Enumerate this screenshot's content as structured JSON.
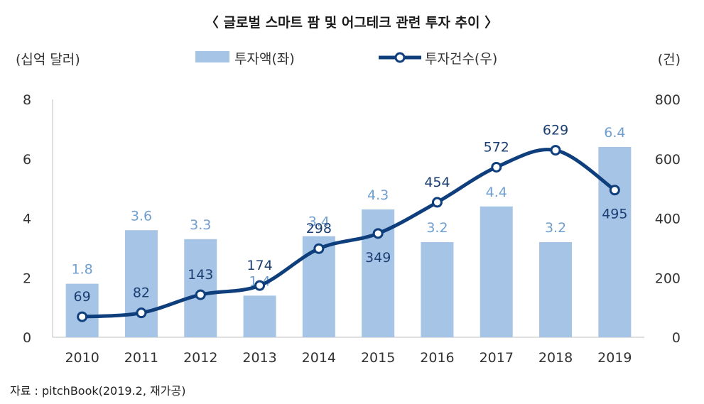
{
  "chart_data": {
    "type": "bar",
    "title": "〈 글로벌 스마트 팜 및 어그테크 관련 투자 추이 〉",
    "ylabel_left": "(십억 달러)",
    "ylabel_right": "(건)",
    "categories": [
      "2010",
      "2011",
      "2012",
      "2013",
      "2014",
      "2015",
      "2016",
      "2017",
      "2018",
      "2019"
    ],
    "series": [
      {
        "name": "투자액(좌)",
        "type": "bar",
        "axis": "left",
        "values": [
          1.8,
          3.6,
          3.3,
          1.4,
          3.4,
          4.3,
          3.2,
          4.4,
          3.2,
          6.4
        ],
        "labels": [
          "1.8",
          "3.6",
          "3.3",
          "1.4",
          "3.4",
          "4.3",
          "3.2",
          "4.4",
          "3.2",
          "6.4"
        ]
      },
      {
        "name": "투자건수(우)",
        "type": "line",
        "axis": "right",
        "values": [
          69,
          82,
          143,
          174,
          298,
          349,
          454,
          572,
          629,
          495
        ],
        "labels": [
          "69",
          "82",
          "143",
          "174",
          "298",
          "349",
          "454",
          "572",
          "629",
          "495"
        ]
      }
    ],
    "ylim_left": [
      0,
      8
    ],
    "ylim_right": [
      0,
      800
    ],
    "yticks_left": [
      "0",
      "2",
      "4",
      "6",
      "8"
    ],
    "yticks_right": [
      "0",
      "200",
      "400",
      "600",
      "800"
    ],
    "grid": false,
    "legend_position": "top",
    "colors": {
      "bar": "#a6c4e6",
      "bar_label": "#6f9fd0",
      "line": "#0e3e7c",
      "line_label": "#1b3f73"
    }
  },
  "source_note": "자료 : pitchBook(2019.2, 재가공)"
}
